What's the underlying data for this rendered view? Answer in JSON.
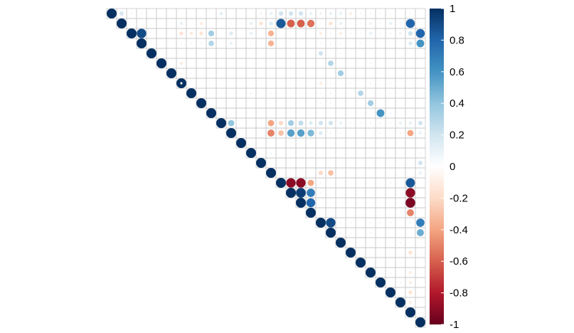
{
  "chart_data": {
    "type": "heatmap",
    "subtype": "correlation-matrix-upper-triangle-circles",
    "n": 32,
    "title": "",
    "xlabel": "",
    "ylabel": "",
    "grid": true,
    "row_labels": [],
    "col_labels": [],
    "colorbar": {
      "range": [
        -1,
        1
      ],
      "ticks": [
        1,
        0.8,
        0.6,
        0.4,
        0.2,
        0,
        -0.2,
        -0.4,
        -0.6,
        -0.8,
        -1
      ],
      "tick_labels": [
        "1",
        "0.8",
        "0.6",
        "0.4",
        "0.2",
        "0",
        "-0.2",
        "-0.4",
        "-0.6",
        "-0.8",
        "-1"
      ],
      "colors": [
        "#67001F",
        "#B2182B",
        "#D6604D",
        "#F4A582",
        "#FDDBC7",
        "#FFFFFF",
        "#D1E5F0",
        "#92C5DE",
        "#4393C3",
        "#2166AC",
        "#053061"
      ]
    },
    "cells": [
      [
        0,
        1,
        0.18
      ],
      [
        0,
        2,
        0.05
      ],
      [
        0,
        3,
        0.05
      ],
      [
        0,
        11,
        0.12
      ],
      [
        0,
        15,
        0.06
      ],
      [
        0,
        16,
        0.1
      ],
      [
        0,
        17,
        0.2
      ],
      [
        0,
        18,
        0.2
      ],
      [
        0,
        19,
        0.2
      ],
      [
        0,
        20,
        0.1
      ],
      [
        0,
        21,
        0.08
      ],
      [
        0,
        22,
        0.1
      ],
      [
        0,
        23,
        0.1
      ],
      [
        0,
        24,
        -0.1
      ],
      [
        0,
        25,
        0.05
      ],
      [
        0,
        26,
        0.05
      ],
      [
        0,
        27,
        0.05
      ],
      [
        0,
        28,
        0.05
      ],
      [
        0,
        30,
        0.05
      ],
      [
        1,
        7,
        0.1
      ],
      [
        1,
        9,
        -0.1
      ],
      [
        1,
        12,
        -0.05
      ],
      [
        1,
        13,
        0.05
      ],
      [
        1,
        14,
        0.1
      ],
      [
        1,
        15,
        -0.15
      ],
      [
        1,
        16,
        0.15
      ],
      [
        1,
        17,
        0.85
      ],
      [
        1,
        18,
        -0.6
      ],
      [
        1,
        19,
        -0.6
      ],
      [
        1,
        20,
        -0.55
      ],
      [
        1,
        21,
        -0.05
      ],
      [
        1,
        22,
        -0.15
      ],
      [
        1,
        23,
        0.1
      ],
      [
        1,
        24,
        0.05
      ],
      [
        1,
        25,
        0.05
      ],
      [
        1,
        26,
        0.08
      ],
      [
        1,
        27,
        0.05
      ],
      [
        1,
        28,
        0.1
      ],
      [
        1,
        29,
        0.05
      ],
      [
        1,
        30,
        0.8
      ],
      [
        2,
        3,
        0.9
      ],
      [
        2,
        7,
        -0.15
      ],
      [
        2,
        8,
        -0.12
      ],
      [
        2,
        9,
        -0.15
      ],
      [
        2,
        10,
        0.35
      ],
      [
        2,
        12,
        0.15
      ],
      [
        2,
        14,
        0.1
      ],
      [
        2,
        16,
        -0.35
      ],
      [
        2,
        21,
        -0.1
      ],
      [
        2,
        22,
        0.05
      ],
      [
        2,
        23,
        -0.1
      ],
      [
        2,
        24,
        0.05
      ],
      [
        2,
        25,
        0.05
      ],
      [
        2,
        26,
        0.1
      ],
      [
        2,
        27,
        0.05
      ],
      [
        2,
        28,
        0.05
      ],
      [
        2,
        29,
        0.08
      ],
      [
        2,
        30,
        0.2
      ],
      [
        2,
        31,
        0.8
      ],
      [
        3,
        7,
        -0.05
      ],
      [
        3,
        8,
        -0.05
      ],
      [
        3,
        9,
        -0.05
      ],
      [
        3,
        10,
        0.3
      ],
      [
        3,
        12,
        0.1
      ],
      [
        3,
        14,
        0.05
      ],
      [
        3,
        16,
        -0.35
      ],
      [
        3,
        21,
        -0.05
      ],
      [
        3,
        22,
        0.05
      ],
      [
        3,
        23,
        0.05
      ],
      [
        3,
        25,
        0.05
      ],
      [
        3,
        30,
        0.15
      ],
      [
        3,
        31,
        0.6
      ],
      [
        4,
        21,
        0.2
      ],
      [
        4,
        23,
        0.05
      ],
      [
        5,
        7,
        -0.1
      ],
      [
        5,
        22,
        0.3
      ],
      [
        5,
        26,
        0.05
      ],
      [
        6,
        7,
        -0.05
      ],
      [
        6,
        23,
        0.35
      ],
      [
        7,
        7,
        -0.05
      ],
      [
        7,
        21,
        -0.1
      ],
      [
        7,
        22,
        -0.05
      ],
      [
        7,
        24,
        0.05
      ],
      [
        7,
        26,
        0.05
      ],
      [
        7,
        28,
        0.05
      ],
      [
        8,
        14,
        0.05
      ],
      [
        8,
        16,
        0.05
      ],
      [
        8,
        21,
        -0.05
      ],
      [
        8,
        22,
        -0.05
      ],
      [
        8,
        25,
        0.3
      ],
      [
        8,
        28,
        0.05
      ],
      [
        9,
        21,
        -0.05
      ],
      [
        9,
        22,
        -0.05
      ],
      [
        9,
        26,
        0.35
      ],
      [
        10,
        27,
        0.6
      ],
      [
        10,
        28,
        0.05
      ],
      [
        11,
        12,
        0.4
      ],
      [
        11,
        16,
        -0.4
      ],
      [
        11,
        17,
        -0.2
      ],
      [
        11,
        18,
        0.35
      ],
      [
        11,
        19,
        0.25
      ],
      [
        11,
        20,
        0.15
      ],
      [
        11,
        21,
        0.2
      ],
      [
        11,
        22,
        0.2
      ],
      [
        11,
        23,
        0.1
      ],
      [
        11,
        24,
        0.05
      ],
      [
        11,
        25,
        0.05
      ],
      [
        11,
        26,
        0.05
      ],
      [
        11,
        27,
        0.05
      ],
      [
        11,
        28,
        0.05
      ],
      [
        11,
        29,
        0.1
      ],
      [
        11,
        30,
        0.1
      ],
      [
        11,
        31,
        0.2
      ],
      [
        12,
        16,
        -0.5
      ],
      [
        12,
        17,
        -0.3
      ],
      [
        12,
        18,
        0.55
      ],
      [
        12,
        19,
        0.55
      ],
      [
        12,
        20,
        0.45
      ],
      [
        12,
        21,
        0.15
      ],
      [
        12,
        22,
        0.05
      ],
      [
        12,
        23,
        0.05
      ],
      [
        12,
        27,
        -0.05
      ],
      [
        12,
        29,
        -0.05
      ],
      [
        12,
        30,
        -0.4
      ],
      [
        12,
        31,
        0.1
      ],
      [
        14,
        16,
        0.05
      ],
      [
        14,
        31,
        0.05
      ],
      [
        15,
        31,
        0.2
      ],
      [
        16,
        21,
        -0.2
      ],
      [
        16,
        22,
        -0.3
      ],
      [
        16,
        31,
        0.1
      ],
      [
        17,
        18,
        -0.9
      ],
      [
        17,
        19,
        -0.9
      ],
      [
        17,
        20,
        -0.4
      ],
      [
        17,
        21,
        0.05
      ],
      [
        17,
        28,
        0.05
      ],
      [
        17,
        30,
        0.85
      ],
      [
        18,
        19,
        0.95
      ],
      [
        18,
        20,
        0.7
      ],
      [
        18,
        21,
        0.05
      ],
      [
        18,
        30,
        -0.9
      ],
      [
        19,
        20,
        0.8
      ],
      [
        19,
        30,
        -0.95
      ],
      [
        20,
        30,
        -0.5
      ],
      [
        21,
        22,
        0.9
      ],
      [
        21,
        23,
        0.05
      ],
      [
        21,
        24,
        0.05
      ],
      [
        21,
        26,
        0.05
      ],
      [
        21,
        27,
        0.05
      ],
      [
        21,
        28,
        0.05
      ],
      [
        21,
        30,
        0.05
      ],
      [
        21,
        31,
        0.7
      ],
      [
        22,
        23,
        0.05
      ],
      [
        22,
        26,
        0.05
      ],
      [
        22,
        31,
        0.5
      ],
      [
        23,
        29,
        -0.05
      ],
      [
        24,
        30,
        -0.15
      ],
      [
        25,
        29,
        -0.05
      ],
      [
        26,
        30,
        -0.1
      ],
      [
        27,
        29,
        0.05
      ],
      [
        27,
        30,
        -0.1
      ],
      [
        28,
        30,
        -0.15
      ],
      [
        29,
        30,
        -0.1
      ]
    ]
  }
}
